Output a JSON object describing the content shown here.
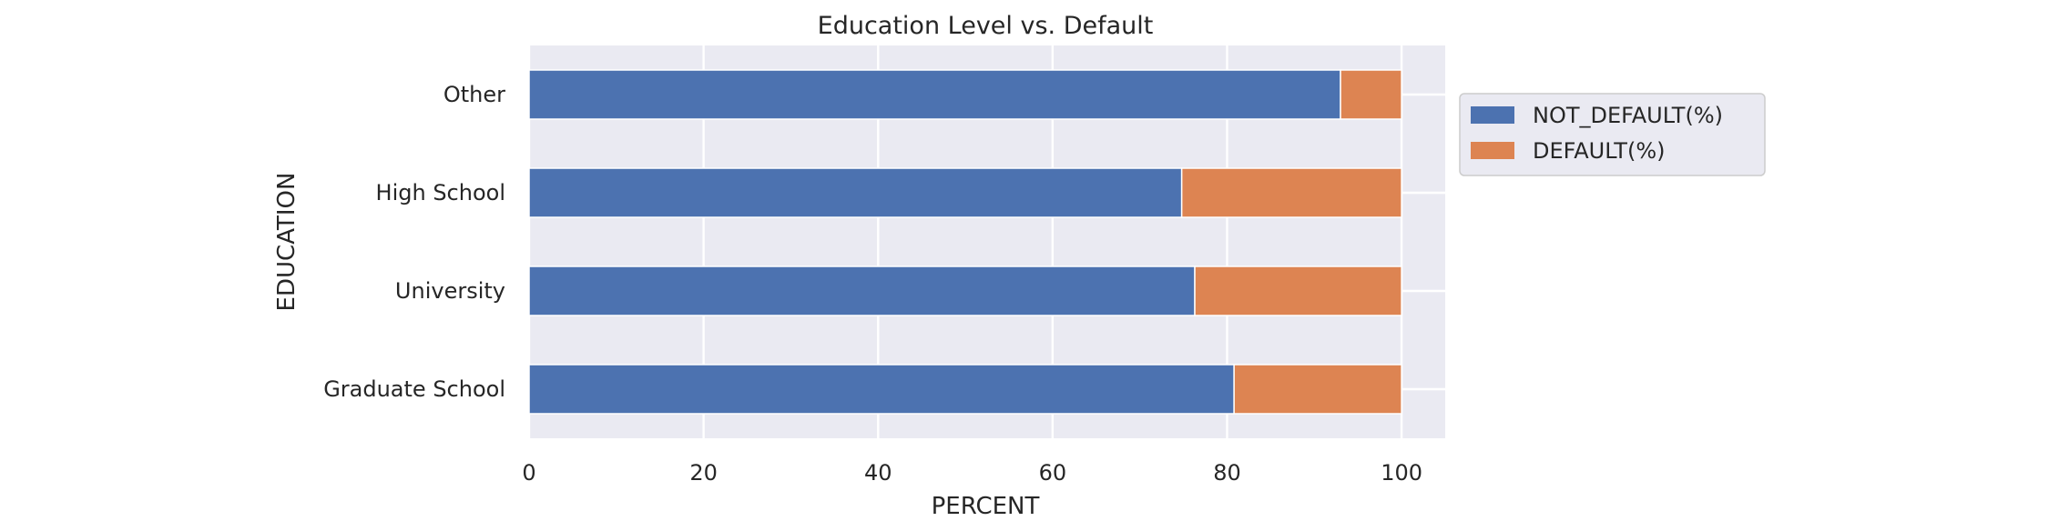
{
  "chart_data": {
    "type": "bar",
    "orientation": "horizontal",
    "stacked": true,
    "title": "Education Level vs. Default",
    "xlabel": "PERCENT",
    "ylabel": "EDUCATION",
    "xlim": [
      0,
      105
    ],
    "x_ticks": [
      0,
      20,
      40,
      60,
      80,
      100
    ],
    "categories": [
      "Graduate School",
      "University",
      "High School",
      "Other"
    ],
    "series": [
      {
        "name": "NOT_DEFAULT(%)",
        "values": [
          80.8,
          76.3,
          74.8,
          93.0
        ]
      },
      {
        "name": "DEFAULT(%)",
        "values": [
          19.2,
          23.7,
          25.2,
          7.0
        ]
      }
    ],
    "colors": {
      "series": [
        "#4c72b0",
        "#dd8452"
      ],
      "plot_bg": "#eaeaf2",
      "grid": "#ffffff"
    },
    "grid": true,
    "legend": "outside-right-top"
  }
}
